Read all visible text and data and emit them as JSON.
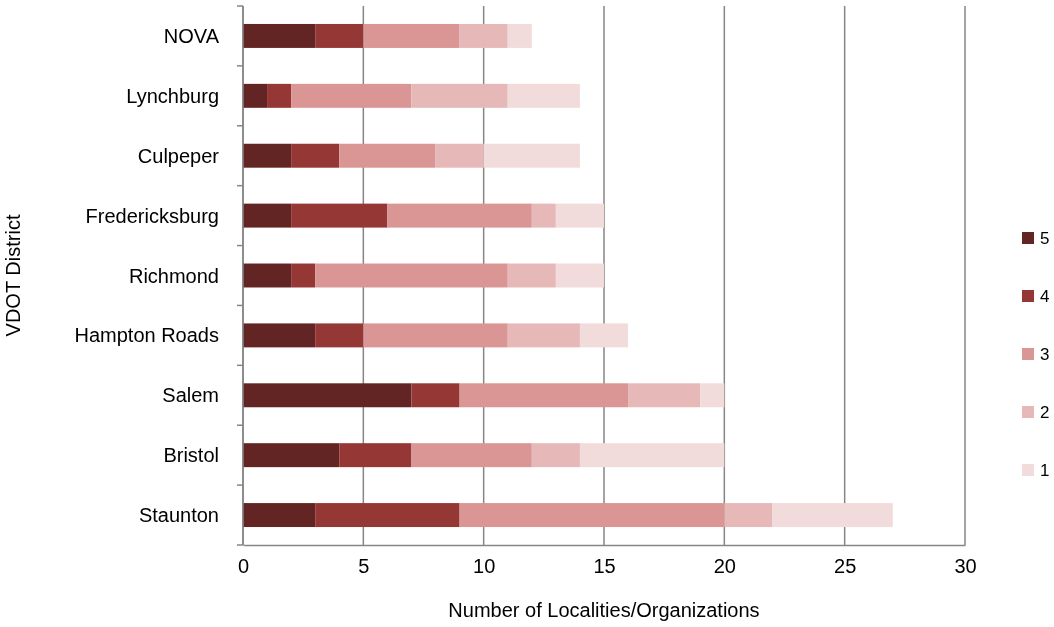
{
  "chart_data": {
    "type": "bar",
    "orientation": "horizontal",
    "stacked": true,
    "xlabel": "Number of Localities/Organizations",
    "ylabel": "VDOT District",
    "categories": [
      "NOVA",
      "Lynchburg",
      "Culpeper",
      "Fredericksburg",
      "Richmond",
      "Hampton Roads",
      "Salem",
      "Bristol",
      "Staunton"
    ],
    "series": [
      {
        "name": "5",
        "color": "#632523",
        "values": [
          3,
          1,
          2,
          2,
          2,
          3,
          7,
          4,
          3
        ]
      },
      {
        "name": "4",
        "color": "#953735",
        "values": [
          2,
          1,
          2,
          4,
          1,
          2,
          2,
          3,
          6
        ]
      },
      {
        "name": "3",
        "color": "#d99694",
        "values": [
          4,
          5,
          4,
          6,
          8,
          6,
          7,
          5,
          11
        ]
      },
      {
        "name": "2",
        "color": "#e6b9b8",
        "values": [
          2,
          4,
          2,
          1,
          2,
          3,
          3,
          2,
          2
        ]
      },
      {
        "name": "1",
        "color": "#f2dcdb",
        "values": [
          1,
          3,
          4,
          2,
          2,
          2,
          1,
          6,
          5
        ]
      }
    ],
    "xlim": [
      0,
      30
    ],
    "xticks": [
      0,
      5,
      10,
      15,
      20,
      25,
      30
    ],
    "grid": "x",
    "legend": "right"
  }
}
